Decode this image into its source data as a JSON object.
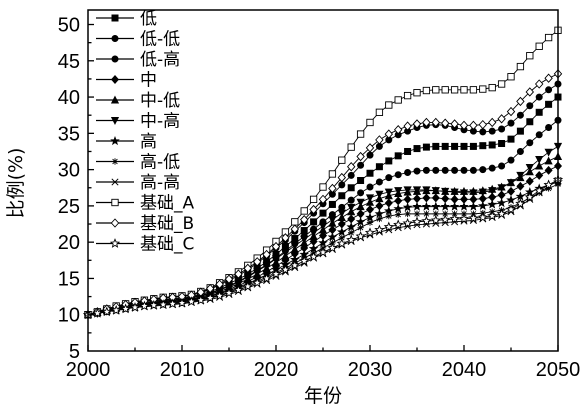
{
  "chart_data": {
    "type": "line",
    "title": "",
    "xlabel": "年份",
    "ylabel": "比例(%)",
    "xlim": [
      2000,
      2050
    ],
    "ylim": [
      5,
      52
    ],
    "x_ticks": [
      2000,
      2010,
      2020,
      2030,
      2040,
      2050
    ],
    "y_ticks": [
      5,
      10,
      15,
      20,
      25,
      30,
      35,
      40,
      45,
      50
    ],
    "grid": false,
    "legend_position": "top-left",
    "x": [
      2000,
      2001,
      2002,
      2003,
      2004,
      2005,
      2006,
      2007,
      2008,
      2009,
      2010,
      2011,
      2012,
      2013,
      2014,
      2015,
      2016,
      2017,
      2018,
      2019,
      2020,
      2021,
      2022,
      2023,
      2024,
      2025,
      2026,
      2027,
      2028,
      2029,
      2030,
      2031,
      2032,
      2033,
      2034,
      2035,
      2036,
      2037,
      2038,
      2039,
      2040,
      2041,
      2042,
      2043,
      2044,
      2045,
      2046,
      2047,
      2048,
      2049,
      2050
    ],
    "series": [
      {
        "name": "低",
        "marker": "filled-square",
        "values": [
          10.0,
          10.3,
          10.7,
          11.0,
          11.3,
          11.6,
          11.8,
          12.0,
          12.1,
          12.2,
          12.3,
          12.5,
          12.8,
          13.2,
          13.7,
          14.3,
          14.9,
          15.6,
          16.4,
          17.3,
          18.3,
          19.4,
          20.5,
          21.6,
          22.8,
          24.0,
          25.2,
          26.4,
          27.5,
          28.5,
          29.5,
          30.4,
          31.2,
          31.9,
          32.5,
          32.9,
          33.1,
          33.2,
          33.2,
          33.2,
          33.2,
          33.2,
          33.3,
          33.4,
          33.6,
          34.2,
          35.3,
          36.6,
          37.9,
          39.0,
          40.0
        ]
      },
      {
        "name": "低-低",
        "marker": "filled-circle",
        "values": [
          10.0,
          10.3,
          10.7,
          11.0,
          11.3,
          11.5,
          11.8,
          11.9,
          12.0,
          12.1,
          12.2,
          12.4,
          12.7,
          13.0,
          13.5,
          14.0,
          14.6,
          15.3,
          16.1,
          16.9,
          17.8,
          18.8,
          19.8,
          20.8,
          21.8,
          22.8,
          23.8,
          24.8,
          25.8,
          26.8,
          27.6,
          28.3,
          28.9,
          29.3,
          29.6,
          29.8,
          29.9,
          29.9,
          29.9,
          29.9,
          29.9,
          29.9,
          30.0,
          30.2,
          30.5,
          31.3,
          32.5,
          33.7,
          34.8,
          35.8,
          36.8
        ]
      },
      {
        "name": "低-高",
        "marker": "filled-circle",
        "values": [
          10.0,
          10.4,
          10.8,
          11.1,
          11.4,
          11.7,
          11.9,
          12.1,
          12.3,
          12.4,
          12.5,
          12.7,
          13.0,
          13.5,
          14.1,
          14.7,
          15.4,
          16.2,
          17.1,
          18.1,
          19.2,
          20.3,
          21.5,
          22.7,
          24.0,
          25.3,
          26.6,
          27.9,
          29.2,
          30.6,
          32.0,
          33.2,
          34.1,
          34.8,
          35.3,
          35.8,
          36.1,
          36.2,
          36.1,
          35.8,
          35.5,
          35.3,
          35.2,
          35.3,
          35.6,
          36.4,
          37.5,
          38.8,
          40.0,
          41.0,
          41.8
        ]
      },
      {
        "name": "中",
        "marker": "filled-diamond",
        "values": [
          10.0,
          10.2,
          10.5,
          10.8,
          11.0,
          11.3,
          11.5,
          11.6,
          11.7,
          11.8,
          11.9,
          12.1,
          12.3,
          12.6,
          13.0,
          13.5,
          14.0,
          14.6,
          15.2,
          15.9,
          16.7,
          17.5,
          18.4,
          19.2,
          20.1,
          20.9,
          21.7,
          22.5,
          23.2,
          23.9,
          24.5,
          25.0,
          25.4,
          25.7,
          25.9,
          26.0,
          26.1,
          26.1,
          26.0,
          25.9,
          25.9,
          25.9,
          26.0,
          26.2,
          26.5,
          27.0,
          27.7,
          28.4,
          29.2,
          29.9,
          30.5
        ]
      },
      {
        "name": "中-低",
        "marker": "filled-triangle-up",
        "values": [
          10.0,
          10.3,
          10.6,
          10.9,
          11.1,
          11.4,
          11.6,
          11.7,
          11.8,
          11.9,
          12.0,
          12.2,
          12.4,
          12.8,
          13.2,
          13.7,
          14.3,
          14.9,
          15.6,
          16.4,
          17.2,
          18.1,
          19.0,
          19.9,
          20.8,
          21.7,
          22.6,
          23.4,
          24.2,
          24.9,
          25.5,
          26.0,
          26.4,
          26.7,
          26.9,
          27.0,
          27.1,
          27.1,
          27.0,
          27.0,
          27.0,
          27.0,
          27.1,
          27.3,
          27.6,
          28.2,
          28.9,
          29.7,
          30.5,
          31.2,
          31.8
        ]
      },
      {
        "name": "中-高",
        "marker": "filled-triangle-down",
        "values": [
          10.0,
          10.3,
          10.6,
          10.9,
          11.2,
          11.4,
          11.6,
          11.8,
          11.9,
          12.0,
          12.1,
          12.3,
          12.6,
          12.9,
          13.4,
          13.9,
          14.5,
          15.2,
          16.0,
          16.8,
          17.7,
          18.6,
          19.5,
          20.4,
          21.3,
          22.2,
          23.1,
          24.0,
          24.8,
          25.5,
          26.1,
          26.6,
          26.9,
          27.1,
          27.2,
          27.2,
          27.2,
          27.1,
          27.0,
          26.9,
          26.8,
          26.8,
          26.9,
          27.1,
          27.5,
          28.2,
          29.2,
          30.3,
          31.4,
          32.4,
          33.2
        ]
      },
      {
        "name": "高",
        "marker": "filled-star",
        "values": [
          10.0,
          10.2,
          10.5,
          10.7,
          11.0,
          11.2,
          11.4,
          11.5,
          11.6,
          11.7,
          11.8,
          12.0,
          12.2,
          12.5,
          12.9,
          13.3,
          13.8,
          14.3,
          14.9,
          15.5,
          16.2,
          16.9,
          17.6,
          18.3,
          19.1,
          19.9,
          20.7,
          21.4,
          22.1,
          22.8,
          23.4,
          23.9,
          24.3,
          24.6,
          24.8,
          24.9,
          24.9,
          24.9,
          24.9,
          24.9,
          24.9,
          24.9,
          25.0,
          25.2,
          25.4,
          25.8,
          26.3,
          26.9,
          27.4,
          27.9,
          28.3
        ]
      },
      {
        "name": "高-低",
        "marker": "asterisk",
        "values": [
          10.0,
          10.2,
          10.4,
          10.7,
          10.9,
          11.1,
          11.3,
          11.4,
          11.5,
          11.6,
          11.7,
          11.9,
          12.1,
          12.4,
          12.7,
          13.1,
          13.6,
          14.1,
          14.6,
          15.2,
          15.8,
          16.4,
          17.1,
          17.8,
          18.5,
          19.2,
          19.9,
          20.6,
          21.3,
          22.0,
          22.7,
          23.2,
          23.6,
          23.8,
          23.9,
          23.9,
          23.9,
          23.9,
          23.9,
          23.9,
          23.9,
          23.9,
          24.0,
          24.2,
          24.4,
          24.8,
          25.4,
          26.1,
          26.8,
          27.4,
          28.0
        ]
      },
      {
        "name": "高-高",
        "marker": "x-cross",
        "values": [
          10.0,
          10.2,
          10.4,
          10.6,
          10.8,
          11.0,
          11.1,
          11.2,
          11.3,
          11.4,
          11.5,
          11.7,
          11.9,
          12.1,
          12.4,
          12.8,
          13.2,
          13.7,
          14.2,
          14.7,
          15.3,
          15.9,
          16.5,
          17.1,
          17.8,
          18.4,
          19.0,
          19.6,
          20.1,
          20.6,
          21.0,
          21.4,
          21.7,
          22.0,
          22.2,
          22.4,
          22.5,
          22.6,
          22.7,
          22.8,
          22.9,
          23.0,
          23.2,
          23.4,
          23.7,
          24.2,
          25.0,
          25.9,
          26.8,
          27.7,
          28.5
        ]
      },
      {
        "name": "基础_A",
        "marker": "open-square",
        "values": [
          10.0,
          10.4,
          10.8,
          11.2,
          11.5,
          11.8,
          12.0,
          12.2,
          12.4,
          12.5,
          12.6,
          12.8,
          13.2,
          13.7,
          14.4,
          15.1,
          15.9,
          16.8,
          17.8,
          18.9,
          20.1,
          21.4,
          22.8,
          24.3,
          25.9,
          27.6,
          29.4,
          31.3,
          33.1,
          34.9,
          36.5,
          37.9,
          38.9,
          39.6,
          40.2,
          40.6,
          40.9,
          41.0,
          41.0,
          41.0,
          41.0,
          41.0,
          41.1,
          41.3,
          41.8,
          42.8,
          44.2,
          45.7,
          47.0,
          48.2,
          49.2
        ]
      },
      {
        "name": "基础_B",
        "marker": "open-diamond",
        "values": [
          10.0,
          10.4,
          10.8,
          11.1,
          11.4,
          11.7,
          11.9,
          12.1,
          12.3,
          12.4,
          12.5,
          12.7,
          13.1,
          13.6,
          14.2,
          14.9,
          15.6,
          16.4,
          17.3,
          18.3,
          19.4,
          20.6,
          21.8,
          23.1,
          24.5,
          25.9,
          27.4,
          28.9,
          30.4,
          31.8,
          33.0,
          34.1,
          34.9,
          35.5,
          36.0,
          36.3,
          36.5,
          36.5,
          36.4,
          36.3,
          36.1,
          36.1,
          36.2,
          36.5,
          37.0,
          38.0,
          39.4,
          40.7,
          41.8,
          42.6,
          43.2
        ]
      },
      {
        "name": "基础_C",
        "marker": "open-star",
        "values": [
          10.0,
          10.2,
          10.4,
          10.6,
          10.8,
          11.0,
          11.2,
          11.3,
          11.4,
          11.5,
          11.6,
          11.8,
          12.0,
          12.3,
          12.6,
          13.0,
          13.4,
          13.9,
          14.4,
          15.0,
          15.6,
          16.2,
          16.8,
          17.4,
          18.0,
          18.6,
          19.2,
          19.8,
          20.3,
          20.8,
          21.3,
          21.7,
          22.1,
          22.4,
          22.6,
          22.8,
          22.9,
          23.0,
          23.1,
          23.2,
          23.2,
          23.3,
          23.4,
          23.6,
          23.9,
          24.5,
          25.3,
          26.2,
          27.1,
          27.9,
          28.6
        ]
      }
    ]
  }
}
